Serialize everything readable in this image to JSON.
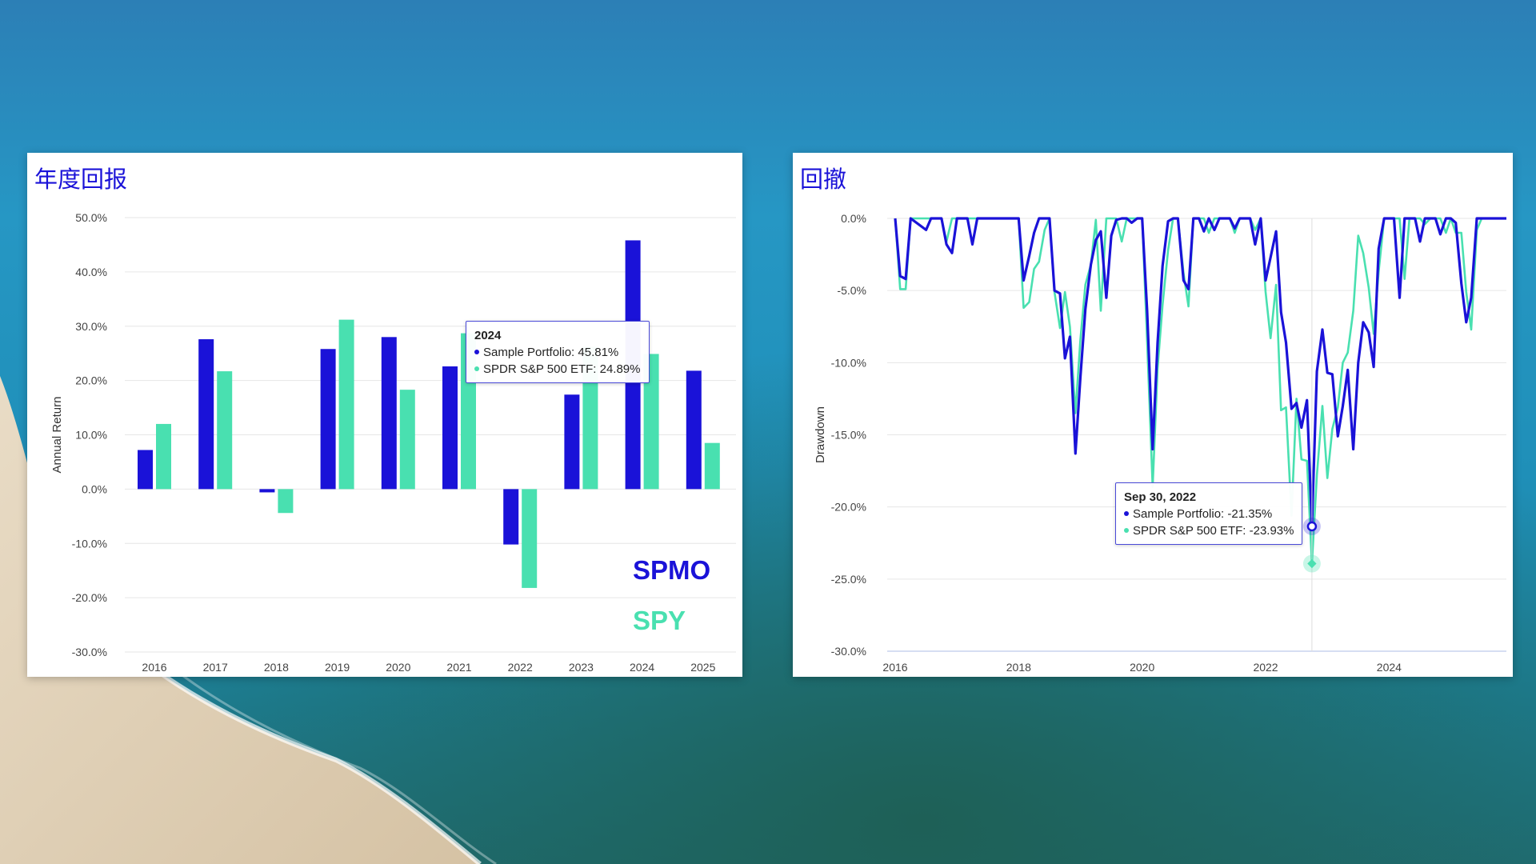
{
  "colors": {
    "portfolio": "#1a12d8",
    "spy": "#49e0b0",
    "grid": "#e6e6e6",
    "title": "#1a12d8"
  },
  "left_panel": {
    "title": "年度回报",
    "tooltip": {
      "title": "2024",
      "line1": "Sample Portfolio: 45.81%",
      "line2": "SPDR S&P 500 ETF: 24.89%"
    },
    "ticker_a": "SPMO",
    "ticker_b": "SPY"
  },
  "right_panel": {
    "title": "回撤",
    "tooltip": {
      "title": "Sep 30, 2022",
      "line1": "Sample Portfolio: -21.35%",
      "line2": "SPDR S&P 500 ETF: -23.93%"
    }
  },
  "chart_data": [
    {
      "type": "bar",
      "title": "年度回报",
      "xlabel": "",
      "ylabel": "Annual Return",
      "ylim": [
        -30,
        50
      ],
      "yticks": [
        -30,
        -20,
        -10,
        0,
        10,
        20,
        30,
        40,
        50
      ],
      "ytick_labels": [
        "-30.0%",
        "-20.0%",
        "-10.0%",
        "0.0%",
        "10.0%",
        "20.0%",
        "30.0%",
        "40.0%",
        "50.0%"
      ],
      "grid": true,
      "categories": [
        "2016",
        "2017",
        "2018",
        "2019",
        "2020",
        "2021",
        "2022",
        "2023",
        "2024",
        "2025"
      ],
      "series": [
        {
          "name": "Sample Portfolio",
          "values": [
            7.2,
            27.6,
            -0.6,
            25.8,
            28.0,
            22.6,
            -10.2,
            17.4,
            45.81,
            21.8
          ]
        },
        {
          "name": "SPDR S&P 500 ETF",
          "values": [
            12.0,
            21.7,
            -4.4,
            31.2,
            18.3,
            28.7,
            -18.2,
            26.2,
            24.89,
            8.5
          ]
        }
      ]
    },
    {
      "type": "line",
      "title": "回撤",
      "xlabel": "",
      "ylabel": "Drawdown",
      "ylim": [
        -30,
        0
      ],
      "xlim": [
        2016.0,
        2025.9
      ],
      "yticks": [
        -30,
        -25,
        -20,
        -15,
        -10,
        -5,
        0
      ],
      "ytick_labels": [
        "-30.0%",
        "-25.0%",
        "-20.0%",
        "-15.0%",
        "-10.0%",
        "-5.0%",
        "0.0%"
      ],
      "xticks": [
        2016,
        2018,
        2020,
        2022,
        2024
      ],
      "xtick_labels": [
        "2016",
        "2018",
        "2020",
        "2022",
        "2024"
      ],
      "grid": true,
      "series": [
        {
          "name": "Sample Portfolio",
          "points": [
            [
              2016.0,
              0
            ],
            [
              2016.08,
              -4.0
            ],
            [
              2016.17,
              -4.2
            ],
            [
              2016.25,
              0
            ],
            [
              2016.5,
              -0.8
            ],
            [
              2016.58,
              0
            ],
            [
              2016.75,
              0
            ],
            [
              2016.83,
              -1.8
            ],
            [
              2016.92,
              -2.4
            ],
            [
              2017.0,
              0
            ],
            [
              2017.17,
              0
            ],
            [
              2017.25,
              -1.8
            ],
            [
              2017.33,
              0
            ],
            [
              2018.0,
              0
            ],
            [
              2018.08,
              -4.3
            ],
            [
              2018.17,
              -2.6
            ],
            [
              2018.25,
              -1.0
            ],
            [
              2018.33,
              0
            ],
            [
              2018.5,
              0
            ],
            [
              2018.58,
              -5.0
            ],
            [
              2018.67,
              -5.2
            ],
            [
              2018.75,
              -9.7
            ],
            [
              2018.83,
              -8.2
            ],
            [
              2018.92,
              -16.3
            ],
            [
              2019.0,
              -11.0
            ],
            [
              2019.08,
              -6.3
            ],
            [
              2019.17,
              -3.2
            ],
            [
              2019.25,
              -1.5
            ],
            [
              2019.33,
              -0.9
            ],
            [
              2019.42,
              -5.5
            ],
            [
              2019.5,
              -1.2
            ],
            [
              2019.58,
              -0.1
            ],
            [
              2019.67,
              0
            ],
            [
              2019.75,
              0
            ],
            [
              2019.83,
              -0.3
            ],
            [
              2019.92,
              0
            ],
            [
              2020.0,
              0
            ],
            [
              2020.08,
              -6.4
            ],
            [
              2020.17,
              -16.0
            ],
            [
              2020.25,
              -8.6
            ],
            [
              2020.33,
              -3.3
            ],
            [
              2020.42,
              -0.2
            ],
            [
              2020.5,
              0
            ],
            [
              2020.58,
              0
            ],
            [
              2020.67,
              -4.3
            ],
            [
              2020.75,
              -4.9
            ],
            [
              2020.83,
              0
            ],
            [
              2020.92,
              0
            ],
            [
              2021.0,
              -0.9
            ],
            [
              2021.08,
              0
            ],
            [
              2021.17,
              -0.8
            ],
            [
              2021.25,
              0
            ],
            [
              2021.42,
              0
            ],
            [
              2021.5,
              -0.7
            ],
            [
              2021.58,
              0
            ],
            [
              2021.75,
              0
            ],
            [
              2021.83,
              -1.8
            ],
            [
              2021.92,
              0
            ],
            [
              2022.0,
              -4.3
            ],
            [
              2022.08,
              -2.7
            ],
            [
              2022.17,
              -0.9
            ],
            [
              2022.25,
              -6.5
            ],
            [
              2022.33,
              -8.6
            ],
            [
              2022.42,
              -13.2
            ],
            [
              2022.5,
              -12.8
            ],
            [
              2022.58,
              -14.5
            ],
            [
              2022.67,
              -12.6
            ],
            [
              2022.75,
              -21.35
            ],
            [
              2022.83,
              -10.6
            ],
            [
              2022.92,
              -7.7
            ],
            [
              2023.0,
              -10.7
            ],
            [
              2023.08,
              -10.8
            ],
            [
              2023.17,
              -15.1
            ],
            [
              2023.25,
              -13.0
            ],
            [
              2023.33,
              -10.5
            ],
            [
              2023.42,
              -16.0
            ],
            [
              2023.5,
              -10.0
            ],
            [
              2023.58,
              -7.2
            ],
            [
              2023.67,
              -7.9
            ],
            [
              2023.75,
              -10.3
            ],
            [
              2023.83,
              -2.1
            ],
            [
              2023.92,
              0
            ],
            [
              2024.0,
              0
            ],
            [
              2024.08,
              0
            ],
            [
              2024.17,
              -5.5
            ],
            [
              2024.25,
              0
            ],
            [
              2024.42,
              0
            ],
            [
              2024.5,
              -1.6
            ],
            [
              2024.58,
              0
            ],
            [
              2024.75,
              0
            ],
            [
              2024.83,
              -1.1
            ],
            [
              2024.92,
              0
            ],
            [
              2025.0,
              0
            ],
            [
              2025.08,
              -0.3
            ],
            [
              2025.17,
              -4.5
            ],
            [
              2025.25,
              -7.2
            ],
            [
              2025.33,
              -5.5
            ],
            [
              2025.42,
              0
            ],
            [
              2025.9,
              0
            ]
          ]
        },
        {
          "name": "SPDR S&P 500 ETF",
          "points": [
            [
              2016.0,
              0
            ],
            [
              2016.08,
              -4.9
            ],
            [
              2016.17,
              -4.9
            ],
            [
              2016.25,
              0
            ],
            [
              2016.75,
              0
            ],
            [
              2016.83,
              -1.6
            ],
            [
              2016.92,
              0
            ],
            [
              2018.0,
              0
            ],
            [
              2018.08,
              -6.2
            ],
            [
              2018.17,
              -5.8
            ],
            [
              2018.25,
              -3.5
            ],
            [
              2018.33,
              -3.0
            ],
            [
              2018.42,
              -0.8
            ],
            [
              2018.5,
              0
            ],
            [
              2018.58,
              -5.1
            ],
            [
              2018.67,
              -7.6
            ],
            [
              2018.75,
              -5.1
            ],
            [
              2018.83,
              -7.5
            ],
            [
              2018.92,
              -13.5
            ],
            [
              2019.0,
              -8.4
            ],
            [
              2019.08,
              -4.6
            ],
            [
              2019.17,
              -3.2
            ],
            [
              2019.25,
              -0.1
            ],
            [
              2019.33,
              -6.4
            ],
            [
              2019.42,
              0
            ],
            [
              2019.58,
              0
            ],
            [
              2019.67,
              -1.6
            ],
            [
              2019.75,
              0
            ],
            [
              2020.0,
              0
            ],
            [
              2020.08,
              -8.5
            ],
            [
              2020.17,
              -18.6
            ],
            [
              2020.25,
              -10.4
            ],
            [
              2020.33,
              -6.0
            ],
            [
              2020.42,
              -2.2
            ],
            [
              2020.5,
              0
            ],
            [
              2020.58,
              0
            ],
            [
              2020.67,
              -3.8
            ],
            [
              2020.75,
              -6.1
            ],
            [
              2020.83,
              0
            ],
            [
              2021.0,
              0
            ],
            [
              2021.08,
              -1.0
            ],
            [
              2021.17,
              0
            ],
            [
              2021.42,
              0
            ],
            [
              2021.5,
              -1.0
            ],
            [
              2021.58,
              0
            ],
            [
              2021.75,
              0
            ],
            [
              2021.83,
              -0.8
            ],
            [
              2021.92,
              0
            ],
            [
              2022.0,
              -5.1
            ],
            [
              2022.08,
              -8.3
            ],
            [
              2022.17,
              -4.6
            ],
            [
              2022.25,
              -13.3
            ],
            [
              2022.33,
              -13.1
            ],
            [
              2022.42,
              -20.6
            ],
            [
              2022.5,
              -12.5
            ],
            [
              2022.58,
              -16.7
            ],
            [
              2022.67,
              -16.8
            ],
            [
              2022.75,
              -23.93
            ],
            [
              2022.83,
              -17.8
            ],
            [
              2022.92,
              -13.0
            ],
            [
              2023.0,
              -18.0
            ],
            [
              2023.08,
              -14.6
            ],
            [
              2023.17,
              -13.1
            ],
            [
              2023.25,
              -10.0
            ],
            [
              2023.33,
              -9.3
            ],
            [
              2023.42,
              -6.4
            ],
            [
              2023.5,
              -1.2
            ],
            [
              2023.58,
              -2.4
            ],
            [
              2023.67,
              -4.8
            ],
            [
              2023.75,
              -8.0
            ],
            [
              2023.83,
              -3.7
            ],
            [
              2023.92,
              0
            ],
            [
              2024.17,
              0
            ],
            [
              2024.25,
              -4.2
            ],
            [
              2024.33,
              0
            ],
            [
              2024.5,
              0
            ],
            [
              2024.58,
              -0.4
            ],
            [
              2024.67,
              0
            ],
            [
              2024.83,
              0
            ],
            [
              2024.92,
              -1.0
            ],
            [
              2025.0,
              0
            ],
            [
              2025.08,
              -1.0
            ],
            [
              2025.17,
              -1.0
            ],
            [
              2025.25,
              -5.1
            ],
            [
              2025.33,
              -7.7
            ],
            [
              2025.42,
              -0.8
            ],
            [
              2025.5,
              0
            ],
            [
              2025.9,
              0
            ]
          ]
        }
      ]
    }
  ]
}
